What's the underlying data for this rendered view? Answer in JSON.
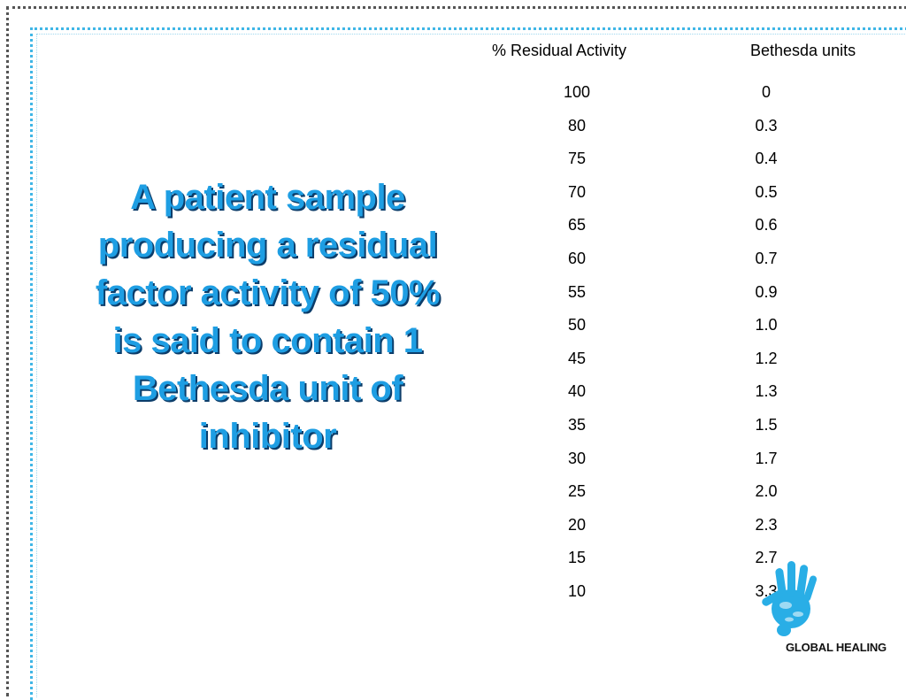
{
  "statement": "A patient sample producing a residual factor activity of 50% is said to contain 1 Bethesda unit of inhibitor",
  "table": {
    "headers": [
      "% Residual Activity",
      "Bethesda units"
    ],
    "rows": [
      [
        "100",
        "0"
      ],
      [
        "80",
        "0.3"
      ],
      [
        "75",
        "0.4"
      ],
      [
        "70",
        "0.5"
      ],
      [
        "65",
        "0.6"
      ],
      [
        "60",
        "0.7"
      ],
      [
        "55",
        "0.9"
      ],
      [
        "50",
        "1.0"
      ],
      [
        "45",
        "1.2"
      ],
      [
        "40",
        "1.3"
      ],
      [
        "35",
        "1.5"
      ],
      [
        "30",
        "1.7"
      ],
      [
        "25",
        "2.0"
      ],
      [
        "20",
        "2.3"
      ],
      [
        "15",
        "2.7"
      ],
      [
        "10",
        "3.3"
      ]
    ]
  },
  "logo": {
    "text": "GLOBAL HEALING",
    "icon": "hand-print-icon",
    "color": "#29aee6"
  },
  "colors": {
    "statement": "#1e9ee3",
    "statement_shadow": "#0c3d6a",
    "frame_inner": "#3fb6e6",
    "frame_outer": "#555555"
  }
}
